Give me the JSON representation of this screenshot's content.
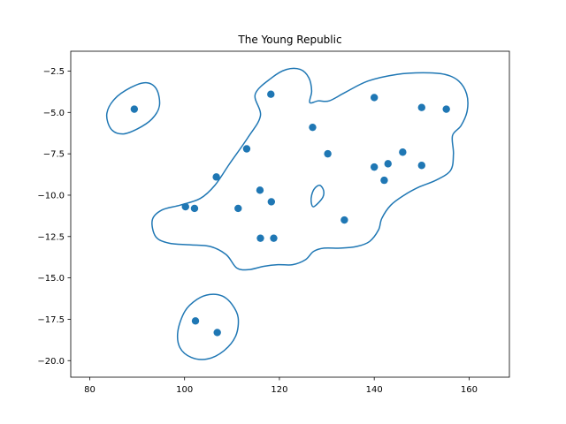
{
  "chart_data": {
    "type": "scatter",
    "title": "The Young Republic",
    "xlabel": "",
    "ylabel": "",
    "xlim": [
      76,
      168.5
    ],
    "ylim": [
      -21,
      -1.3
    ],
    "x_ticks": [
      80,
      100,
      120,
      140,
      160
    ],
    "x_tick_labels": [
      "80",
      "100",
      "120",
      "140",
      "160"
    ],
    "y_ticks": [
      -2.5,
      -5.0,
      -7.5,
      -10.0,
      -12.5,
      -15.0,
      -17.5,
      -20.0
    ],
    "y_tick_labels": [
      "−2.5",
      "−5.0",
      "−7.5",
      "−10.0",
      "−12.5",
      "−15.0",
      "−17.5",
      "−20.0"
    ],
    "grid": false,
    "colors": {
      "marker": "#1f77b4",
      "contour": "#1f77b4"
    },
    "points": [
      {
        "x": 89.4,
        "y": -4.8
      },
      {
        "x": 118.2,
        "y": -3.9
      },
      {
        "x": 140.0,
        "y": -4.1
      },
      {
        "x": 150.0,
        "y": -4.7
      },
      {
        "x": 155.2,
        "y": -4.8
      },
      {
        "x": 127.0,
        "y": -5.9
      },
      {
        "x": 113.1,
        "y": -7.2
      },
      {
        "x": 130.2,
        "y": -7.5
      },
      {
        "x": 146.0,
        "y": -7.4
      },
      {
        "x": 140.0,
        "y": -8.3
      },
      {
        "x": 142.9,
        "y": -8.1
      },
      {
        "x": 150.0,
        "y": -8.2
      },
      {
        "x": 106.7,
        "y": -8.9
      },
      {
        "x": 142.1,
        "y": -9.1
      },
      {
        "x": 115.9,
        "y": -9.7
      },
      {
        "x": 118.3,
        "y": -10.4
      },
      {
        "x": 100.2,
        "y": -10.7
      },
      {
        "x": 102.1,
        "y": -10.8
      },
      {
        "x": 111.3,
        "y": -10.8
      },
      {
        "x": 133.7,
        "y": -11.5
      },
      {
        "x": 116.0,
        "y": -12.6
      },
      {
        "x": 118.8,
        "y": -12.6
      },
      {
        "x": 102.3,
        "y": -17.6
      },
      {
        "x": 106.9,
        "y": -18.3
      }
    ],
    "contours": [
      [
        [
          83.6,
          -5.1
        ],
        [
          85.2,
          -4.2
        ],
        [
          88.6,
          -3.5
        ],
        [
          91.9,
          -3.2
        ],
        [
          94.1,
          -3.6
        ],
        [
          94.7,
          -4.6
        ],
        [
          93.1,
          -5.4
        ],
        [
          90.0,
          -6.0
        ],
        [
          86.9,
          -6.3
        ],
        [
          84.5,
          -6.0
        ],
        [
          83.6,
          -5.1
        ]
      ],
      [
        [
          106.4,
          -9.4
        ],
        [
          109.5,
          -8.1
        ],
        [
          113.4,
          -6.5
        ],
        [
          116.0,
          -5.2
        ],
        [
          114.9,
          -3.9
        ],
        [
          118.4,
          -2.9
        ],
        [
          121.5,
          -2.4
        ],
        [
          124.4,
          -2.4
        ],
        [
          126.2,
          -2.9
        ],
        [
          126.8,
          -3.7
        ],
        [
          126.4,
          -4.4
        ],
        [
          128.2,
          -4.3
        ],
        [
          130.5,
          -4.3
        ],
        [
          133.8,
          -3.8
        ],
        [
          138.7,
          -3.1
        ],
        [
          144.8,
          -2.7
        ],
        [
          150.3,
          -2.6
        ],
        [
          154.9,
          -2.7
        ],
        [
          157.8,
          -3.1
        ],
        [
          159.5,
          -3.9
        ],
        [
          159.6,
          -4.9
        ],
        [
          158.3,
          -5.8
        ],
        [
          156.5,
          -6.4
        ],
        [
          156.7,
          -7.5
        ],
        [
          156.1,
          -8.5
        ],
        [
          153.0,
          -9.1
        ],
        [
          149.5,
          -9.5
        ],
        [
          146.3,
          -10.0
        ],
        [
          143.5,
          -10.6
        ],
        [
          141.6,
          -11.4
        ],
        [
          140.9,
          -12.1
        ],
        [
          139.0,
          -12.8
        ],
        [
          136.3,
          -13.1
        ],
        [
          132.9,
          -13.2
        ],
        [
          129.4,
          -13.2
        ],
        [
          127.2,
          -13.4
        ],
        [
          125.5,
          -13.9
        ],
        [
          122.8,
          -14.2
        ],
        [
          119.7,
          -14.2
        ],
        [
          116.7,
          -14.3
        ],
        [
          113.5,
          -14.5
        ],
        [
          111.0,
          -14.4
        ],
        [
          108.8,
          -13.6
        ],
        [
          105.4,
          -13.1
        ],
        [
          101.1,
          -13.0
        ],
        [
          96.7,
          -12.9
        ],
        [
          93.9,
          -12.5
        ],
        [
          93.2,
          -11.5
        ],
        [
          95.2,
          -10.9
        ],
        [
          99.1,
          -10.6
        ],
        [
          103.3,
          -10.2
        ],
        [
          106.4,
          -9.4
        ]
      ],
      [
        [
          126.8,
          -10.0
        ],
        [
          127.4,
          -9.6
        ],
        [
          128.5,
          -9.4
        ],
        [
          129.3,
          -9.7
        ],
        [
          129.2,
          -10.1
        ],
        [
          128.1,
          -10.5
        ],
        [
          127.1,
          -10.7
        ],
        [
          126.7,
          -10.4
        ],
        [
          126.8,
          -10.0
        ]
      ],
      [
        [
          98.6,
          -18.2
        ],
        [
          100.1,
          -17.0
        ],
        [
          102.6,
          -16.3
        ],
        [
          105.3,
          -16.0
        ],
        [
          108.0,
          -16.1
        ],
        [
          110.0,
          -16.6
        ],
        [
          111.3,
          -17.4
        ],
        [
          110.8,
          -18.5
        ],
        [
          108.3,
          -19.4
        ],
        [
          104.8,
          -19.9
        ],
        [
          101.4,
          -19.8
        ],
        [
          99.0,
          -19.2
        ],
        [
          98.6,
          -18.2
        ]
      ]
    ]
  }
}
